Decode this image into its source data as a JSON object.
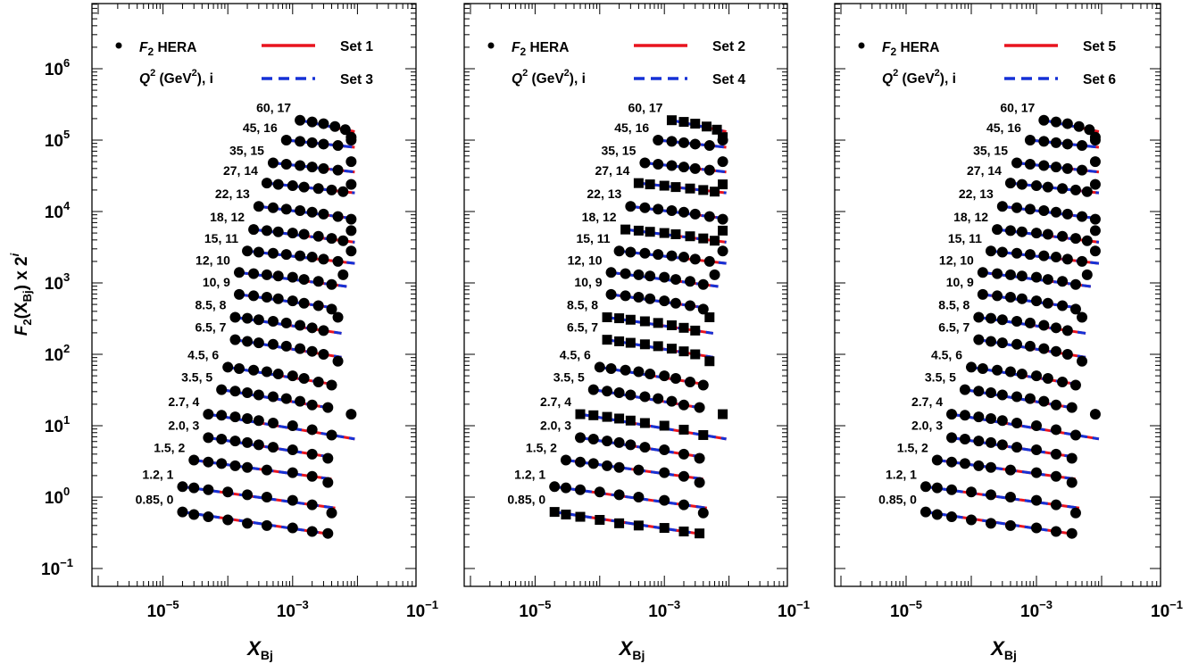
{
  "chart_data": [
    {
      "type": "scatter",
      "panel": "left",
      "xlabel": "X_Bj",
      "ylabel": "F2(X_Bj) x 2^i",
      "xscale": "log",
      "yscale": "log",
      "xlim": [
        1e-06,
        0.1
      ],
      "ylim": [
        0.1,
        10000000.0
      ],
      "xticklabels": [
        "10^-5",
        "10^-3",
        "10^-1"
      ],
      "yticklabels": [
        "10^-1",
        "10^0",
        "10^1",
        "10^2",
        "10^3",
        "10^4",
        "10^5",
        "10^6"
      ],
      "legend": {
        "marker_label": "F2 HERA",
        "subtitle": "Q^2 (GeV^2), i",
        "solid_label": "Set 1",
        "dashed_label": "Set 3",
        "solid_color": "#e8141e",
        "dashed_color": "#1531d6",
        "placement": "top"
      },
      "marker": "circle",
      "series_labels": [
        "0.85, 0",
        "1.2, 1",
        "1.5, 2",
        "2.0, 3",
        "2.7, 4",
        "3.5, 5",
        "4.5, 6",
        "6.5, 7",
        "8.5, 8",
        "10, 9",
        "12, 10",
        "15, 11",
        "18, 12",
        "22, 13",
        "27, 14",
        "35, 15",
        "45, 16",
        "60, 17"
      ],
      "series": [
        {
          "x": [
            2e-05,
            3e-05,
            5e-05,
            0.0001,
            0.0002,
            0.0004,
            0.001,
            0.002,
            0.0035
          ],
          "y": [
            0.62,
            0.57,
            0.53,
            0.48,
            0.43,
            0.4,
            0.37,
            0.33,
            0.31
          ]
        },
        {
          "x": [
            2e-05,
            3e-05,
            5e-05,
            0.0001,
            0.0002,
            0.0004,
            0.001,
            0.002,
            0.004
          ],
          "y": [
            1.4,
            1.35,
            1.27,
            1.18,
            1.08,
            1.0,
            0.9,
            0.78,
            0.6
          ]
        },
        {
          "x": [
            3e-05,
            5e-05,
            8e-05,
            0.00013,
            0.0002,
            0.0004,
            0.001,
            0.002,
            0.0035
          ],
          "y": [
            3.3,
            3.1,
            2.95,
            2.75,
            2.6,
            2.4,
            2.2,
            1.95,
            1.6
          ]
        },
        {
          "x": [
            5e-05,
            8e-05,
            0.00013,
            0.0002,
            0.0003,
            0.0005,
            0.001,
            0.002,
            0.0035
          ],
          "y": [
            6.8,
            6.5,
            6.1,
            5.8,
            5.4,
            5.0,
            4.6,
            4.0,
            3.5
          ]
        },
        {
          "x": [
            5e-05,
            8e-05,
            0.00013,
            0.0002,
            0.0003,
            0.0005,
            0.001,
            0.002,
            0.004,
            0.008
          ],
          "y": [
            14.5,
            14,
            13.3,
            12.6,
            11.8,
            10.9,
            10,
            8.8,
            7.4,
            14.5
          ]
        },
        {
          "x": [
            8e-05,
            0.00013,
            0.0002,
            0.0003,
            0.0005,
            0.0008,
            0.0013,
            0.002,
            0.0035
          ],
          "y": [
            32,
            30.5,
            29,
            27,
            25.5,
            24,
            22,
            19.5,
            18
          ]
        },
        {
          "x": [
            0.0001,
            0.00015,
            0.00025,
            0.0004,
            0.0006,
            0.001,
            0.0015,
            0.0025,
            0.004
          ],
          "y": [
            66,
            63,
            60,
            57,
            53,
            50,
            46,
            41,
            37
          ]
        },
        {
          "x": [
            0.00013,
            0.0002,
            0.0003,
            0.0005,
            0.0008,
            0.0013,
            0.002,
            0.003,
            0.005
          ],
          "y": [
            160,
            152,
            145,
            138,
            130,
            120,
            110,
            100,
            80
          ]
        },
        {
          "x": [
            0.00013,
            0.0002,
            0.0003,
            0.0005,
            0.0008,
            0.0013,
            0.002,
            0.003,
            0.005
          ],
          "y": [
            330,
            320,
            305,
            290,
            275,
            255,
            235,
            215,
            330
          ]
        },
        {
          "x": [
            0.00015,
            0.00025,
            0.0004,
            0.0006,
            0.001,
            0.0015,
            0.0025,
            0.004
          ],
          "y": [
            690,
            660,
            630,
            600,
            560,
            520,
            480,
            430
          ]
        },
        {
          "x": [
            0.00015,
            0.00025,
            0.0004,
            0.0006,
            0.001,
            0.0015,
            0.0025,
            0.004,
            0.006
          ],
          "y": [
            1400,
            1350,
            1300,
            1250,
            1200,
            1120,
            1050,
            950,
            1300
          ]
        },
        {
          "x": [
            0.0002,
            0.0003,
            0.0005,
            0.0008,
            0.0013,
            0.002,
            0.003,
            0.005,
            0.008
          ],
          "y": [
            2800,
            2700,
            2600,
            2500,
            2400,
            2300,
            2150,
            2000,
            2800
          ]
        },
        {
          "x": [
            0.00025,
            0.0004,
            0.0006,
            0.001,
            0.0015,
            0.0025,
            0.004,
            0.006,
            0.008
          ],
          "y": [
            5600,
            5400,
            5200,
            5000,
            4800,
            4500,
            4200,
            3900,
            5400
          ]
        },
        {
          "x": [
            0.0003,
            0.0005,
            0.0008,
            0.0013,
            0.002,
            0.003,
            0.005,
            0.008
          ],
          "y": [
            11800,
            11300,
            10800,
            10300,
            9800,
            9200,
            8500,
            7800
          ]
        },
        {
          "x": [
            0.0004,
            0.0006,
            0.001,
            0.0015,
            0.0025,
            0.004,
            0.006,
            0.008
          ],
          "y": [
            25000,
            24000,
            23000,
            22000,
            21000,
            20000,
            19000,
            24000
          ]
        },
        {
          "x": [
            0.0005,
            0.0008,
            0.0013,
            0.002,
            0.003,
            0.005,
            0.008
          ],
          "y": [
            48000,
            46000,
            44000,
            42000,
            40000,
            38000,
            50000
          ]
        },
        {
          "x": [
            0.0008,
            0.0013,
            0.002,
            0.003,
            0.005,
            0.008
          ],
          "y": [
            100000,
            96000,
            92000,
            88000,
            84000,
            100000
          ]
        },
        {
          "x": [
            0.0013,
            0.002,
            0.003,
            0.0045,
            0.0065,
            0.008
          ],
          "y": [
            190000,
            180000,
            170000,
            155000,
            140000,
            110000
          ]
        }
      ]
    },
    {
      "type": "scatter",
      "panel": "middle",
      "xlabel": "X_Bj",
      "xscale": "log",
      "yscale": "log",
      "xlim": [
        1e-06,
        0.1
      ],
      "ylim": [
        0.1,
        10000000.0
      ],
      "xticklabels": [
        "10^-5",
        "10^-3",
        "10^-1"
      ],
      "legend": {
        "marker_label": "F2 HERA",
        "subtitle": "Q^2 (GeV^2), i",
        "solid_label": "Set 2",
        "dashed_label": "Set 4",
        "solid_color": "#e8141e",
        "dashed_color": "#1531d6",
        "placement": "top"
      },
      "marker": "mixed (circles and squares)",
      "square_series_indices": [
        0,
        4,
        7,
        8,
        12,
        14,
        17
      ],
      "series_labels": [
        "0.85, 0",
        "1.2, 1",
        "1.5, 2",
        "2.0, 3",
        "2.7, 4",
        "3.5, 5",
        "4.5, 6",
        "6.5, 7",
        "8.5, 8",
        "10, 9",
        "12, 10",
        "15, 11",
        "18, 12",
        "22, 13",
        "27, 14",
        "35, 15",
        "45, 16",
        "60, 17"
      ]
    },
    {
      "type": "scatter",
      "panel": "right",
      "xlabel": "X_Bj",
      "xscale": "log",
      "yscale": "log",
      "xlim": [
        1e-06,
        0.1
      ],
      "ylim": [
        0.1,
        10000000.0
      ],
      "xticklabels": [
        "10^-5",
        "10^-3",
        "10^-1"
      ],
      "legend": {
        "marker_label": "F2 HERA",
        "subtitle": "Q^2 (GeV^2), i",
        "solid_label": "Set 5",
        "dashed_label": "Set 6",
        "solid_color": "#e8141e",
        "dashed_color": "#1531d6",
        "placement": "top"
      },
      "marker": "circle",
      "series_labels": [
        "0.85, 0",
        "1.2, 1",
        "1.5, 2",
        "2.0, 3",
        "2.7, 4",
        "3.5, 5",
        "4.5, 6",
        "6.5, 7",
        "8.5, 8",
        "10, 9",
        "12, 10",
        "15, 11",
        "18, 12",
        "22, 13",
        "27, 14",
        "35, 15",
        "45, 16",
        "60, 17"
      ]
    }
  ]
}
